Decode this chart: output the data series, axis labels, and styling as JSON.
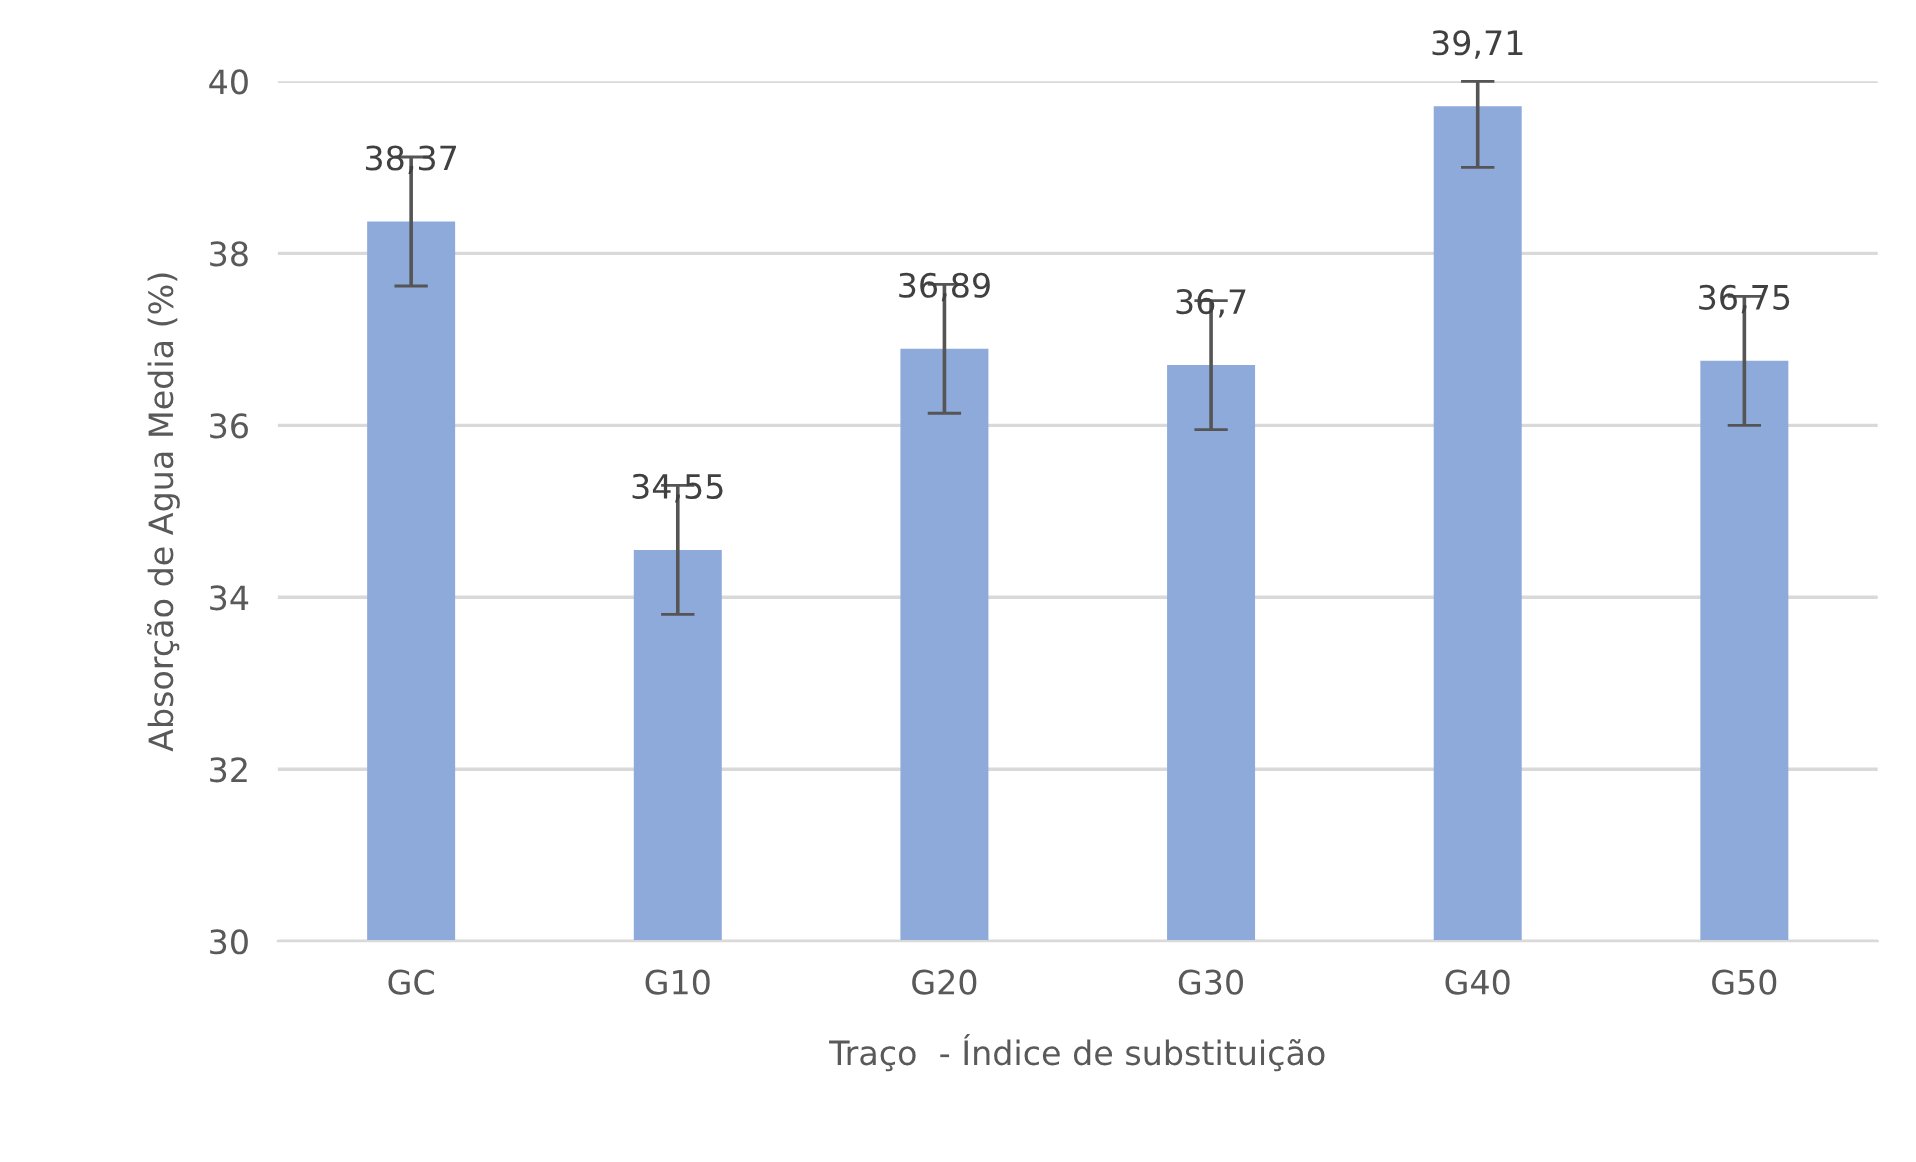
{
  "chart_data": {
    "type": "bar",
    "xlabel": "Traço  - Índice de substituição",
    "ylabel": "Absorção de Agua Media (%)",
    "categories": [
      "GC",
      "G10",
      "G20",
      "G30",
      "G40",
      "G50"
    ],
    "values": [
      38.37,
      34.55,
      36.89,
      36.7,
      39.71,
      36.75
    ],
    "value_labels": [
      "38,37",
      "34,55",
      "36,89",
      "36,7",
      "39,71",
      "36,75"
    ],
    "errors": [
      0.75,
      0.75,
      0.75,
      0.75,
      [
        39.0,
        40
      ],
      0.75
    ],
    "color": "#8eaadb",
    "ylim": [
      30,
      40
    ],
    "yticks": [
      30,
      32,
      34,
      36,
      38,
      40
    ],
    "grid": "y",
    "legend": false
  }
}
